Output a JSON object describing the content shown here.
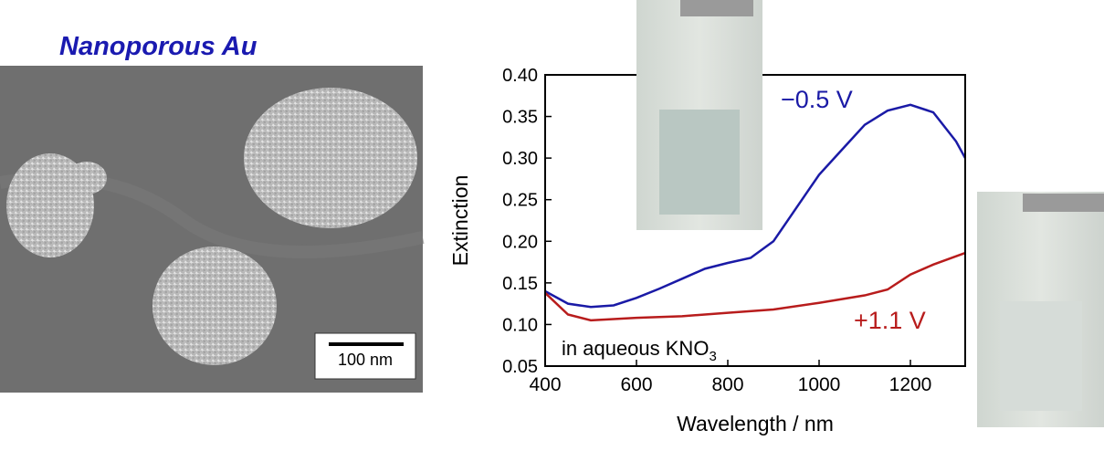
{
  "panel": {
    "title": "Nanoporous Au",
    "scale_bar": "100 nm"
  },
  "chart_data": {
    "type": "line",
    "x_label": "Wavelength / nm",
    "y_label": "Extinction",
    "annotation": {
      "text": "in aqueous KNO",
      "subscript": "3"
    },
    "xlim": [
      400,
      1320
    ],
    "ylim": [
      0.05,
      0.4
    ],
    "xticks": [
      400,
      600,
      800,
      1000,
      1200
    ],
    "yticks": [
      0.05,
      {
        "value": 0.1,
        "label": "0.10"
      },
      0.15,
      {
        "value": 0.2,
        "label": "0.20"
      },
      0.25,
      {
        "value": 0.3,
        "label": "0.30"
      },
      0.35,
      {
        "value": 0.4,
        "label": "0.40"
      }
    ],
    "series": [
      {
        "name": "−0.5 V",
        "color": "#1a1aa6",
        "x": [
          400,
          450,
          500,
          550,
          600,
          650,
          700,
          750,
          800,
          850,
          900,
          950,
          1000,
          1050,
          1100,
          1150,
          1200,
          1250,
          1300,
          1320
        ],
        "values": [
          0.14,
          0.125,
          0.121,
          0.123,
          0.132,
          0.143,
          0.155,
          0.167,
          0.174,
          0.18,
          0.2,
          0.24,
          0.28,
          0.31,
          0.34,
          0.357,
          0.364,
          0.355,
          0.32,
          0.3
        ]
      },
      {
        "name": "+1.1 V",
        "color": "#b81c1c",
        "x": [
          400,
          450,
          500,
          600,
          700,
          800,
          900,
          1000,
          1100,
          1150,
          1200,
          1250,
          1300,
          1320
        ],
        "values": [
          0.138,
          0.112,
          0.105,
          0.108,
          0.11,
          0.114,
          0.118,
          0.126,
          0.135,
          0.142,
          0.16,
          0.172,
          0.182,
          0.186
        ]
      }
    ]
  }
}
